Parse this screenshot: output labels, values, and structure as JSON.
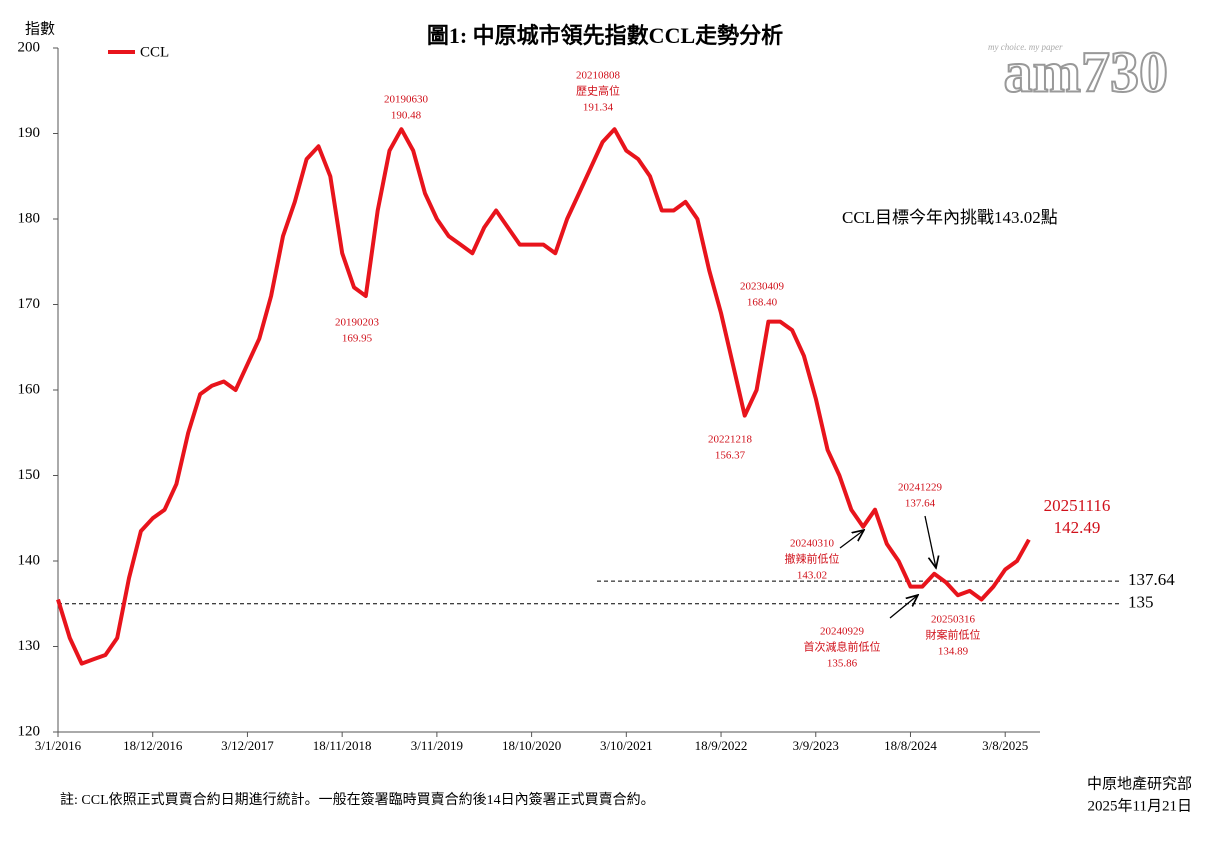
{
  "chart_data": {
    "type": "line",
    "title": "圖1: 中原城市領先指數CCL走勢分析",
    "ylabel": "指數",
    "categories": [
      "3/1/2016",
      null,
      null,
      null,
      null,
      null,
      null,
      null,
      "18/12/2016",
      null,
      null,
      null,
      null,
      null,
      null,
      null,
      "3/12/2017",
      null,
      null,
      null,
      null,
      null,
      null,
      null,
      "18/11/2018",
      null,
      null,
      null,
      null,
      null,
      null,
      null,
      "3/11/2019",
      null,
      null,
      null,
      null,
      null,
      null,
      null,
      "18/10/2020",
      null,
      null,
      null,
      null,
      null,
      null,
      null,
      "3/10/2021",
      null,
      null,
      null,
      null,
      null,
      null,
      null,
      "18/9/2022",
      null,
      null,
      null,
      null,
      null,
      null,
      null,
      "3/9/2023",
      null,
      null,
      null,
      null,
      null,
      null,
      null,
      "18/8/2024",
      null,
      null,
      null,
      null,
      null,
      null,
      null,
      "3/8/2025",
      null,
      null
    ],
    "series": [
      {
        "name": "CCL",
        "color": "#e8141c",
        "values": [
          135.5,
          131,
          128,
          128.5,
          129,
          131,
          138,
          143.5,
          145,
          146,
          149,
          155,
          159.5,
          160.5,
          161,
          160,
          163,
          166,
          171,
          178,
          182,
          187,
          188.5,
          185,
          176,
          172,
          171,
          181,
          188,
          190.5,
          188,
          183,
          180,
          178,
          177,
          176,
          179,
          181,
          179,
          177,
          177,
          177,
          176,
          180,
          183,
          186,
          189,
          190.5,
          188,
          187,
          185,
          181,
          181,
          182,
          180,
          174,
          169,
          163,
          157,
          160,
          168,
          168,
          167,
          164,
          159,
          153,
          150,
          146,
          144,
          146,
          142,
          140,
          137,
          137,
          138.5,
          137.5,
          136,
          136.5,
          135.5,
          137,
          139,
          140,
          142.49
        ]
      }
    ],
    "ylim": [
      120,
      200
    ],
    "yticks": [
      120,
      130,
      140,
      150,
      160,
      170,
      180,
      190,
      200
    ],
    "grid": false,
    "legend": "upper-left",
    "hlines": [
      {
        "value": 137.64
      },
      {
        "value": 135
      }
    ],
    "annotations": [
      {
        "date": "20190630",
        "value": 190.48
      },
      {
        "date": "20210808",
        "note": "歷史高位",
        "value": 191.34
      },
      {
        "date": "20190203",
        "value": 169.95
      },
      {
        "date": "20230409",
        "value": 168.4,
        "value_label": "168.40"
      },
      {
        "date": "20221218",
        "value": 156.37
      },
      {
        "date": "20240310",
        "note": "撤辣前低位",
        "value": 143.02
      },
      {
        "date": "20241229",
        "value": 137.64
      },
      {
        "date": "20240929",
        "note": "首次減息前低位",
        "value": 135.86
      },
      {
        "date": "20250316",
        "note": "財案前低位",
        "value": 134.89
      },
      {
        "date": "20251116",
        "value": 142.49
      }
    ],
    "callout": "CCL目標今年內挑戰143.02點",
    "footnote": "註: CCL依照正式買賣合約日期進行統計。一般在簽署臨時買賣合約後14日內簽署正式買賣合約。",
    "source": "中原地產研究部",
    "date": "2025年11月21日"
  },
  "logo": {
    "name": "am730",
    "tagline": "my choice. my paper"
  }
}
